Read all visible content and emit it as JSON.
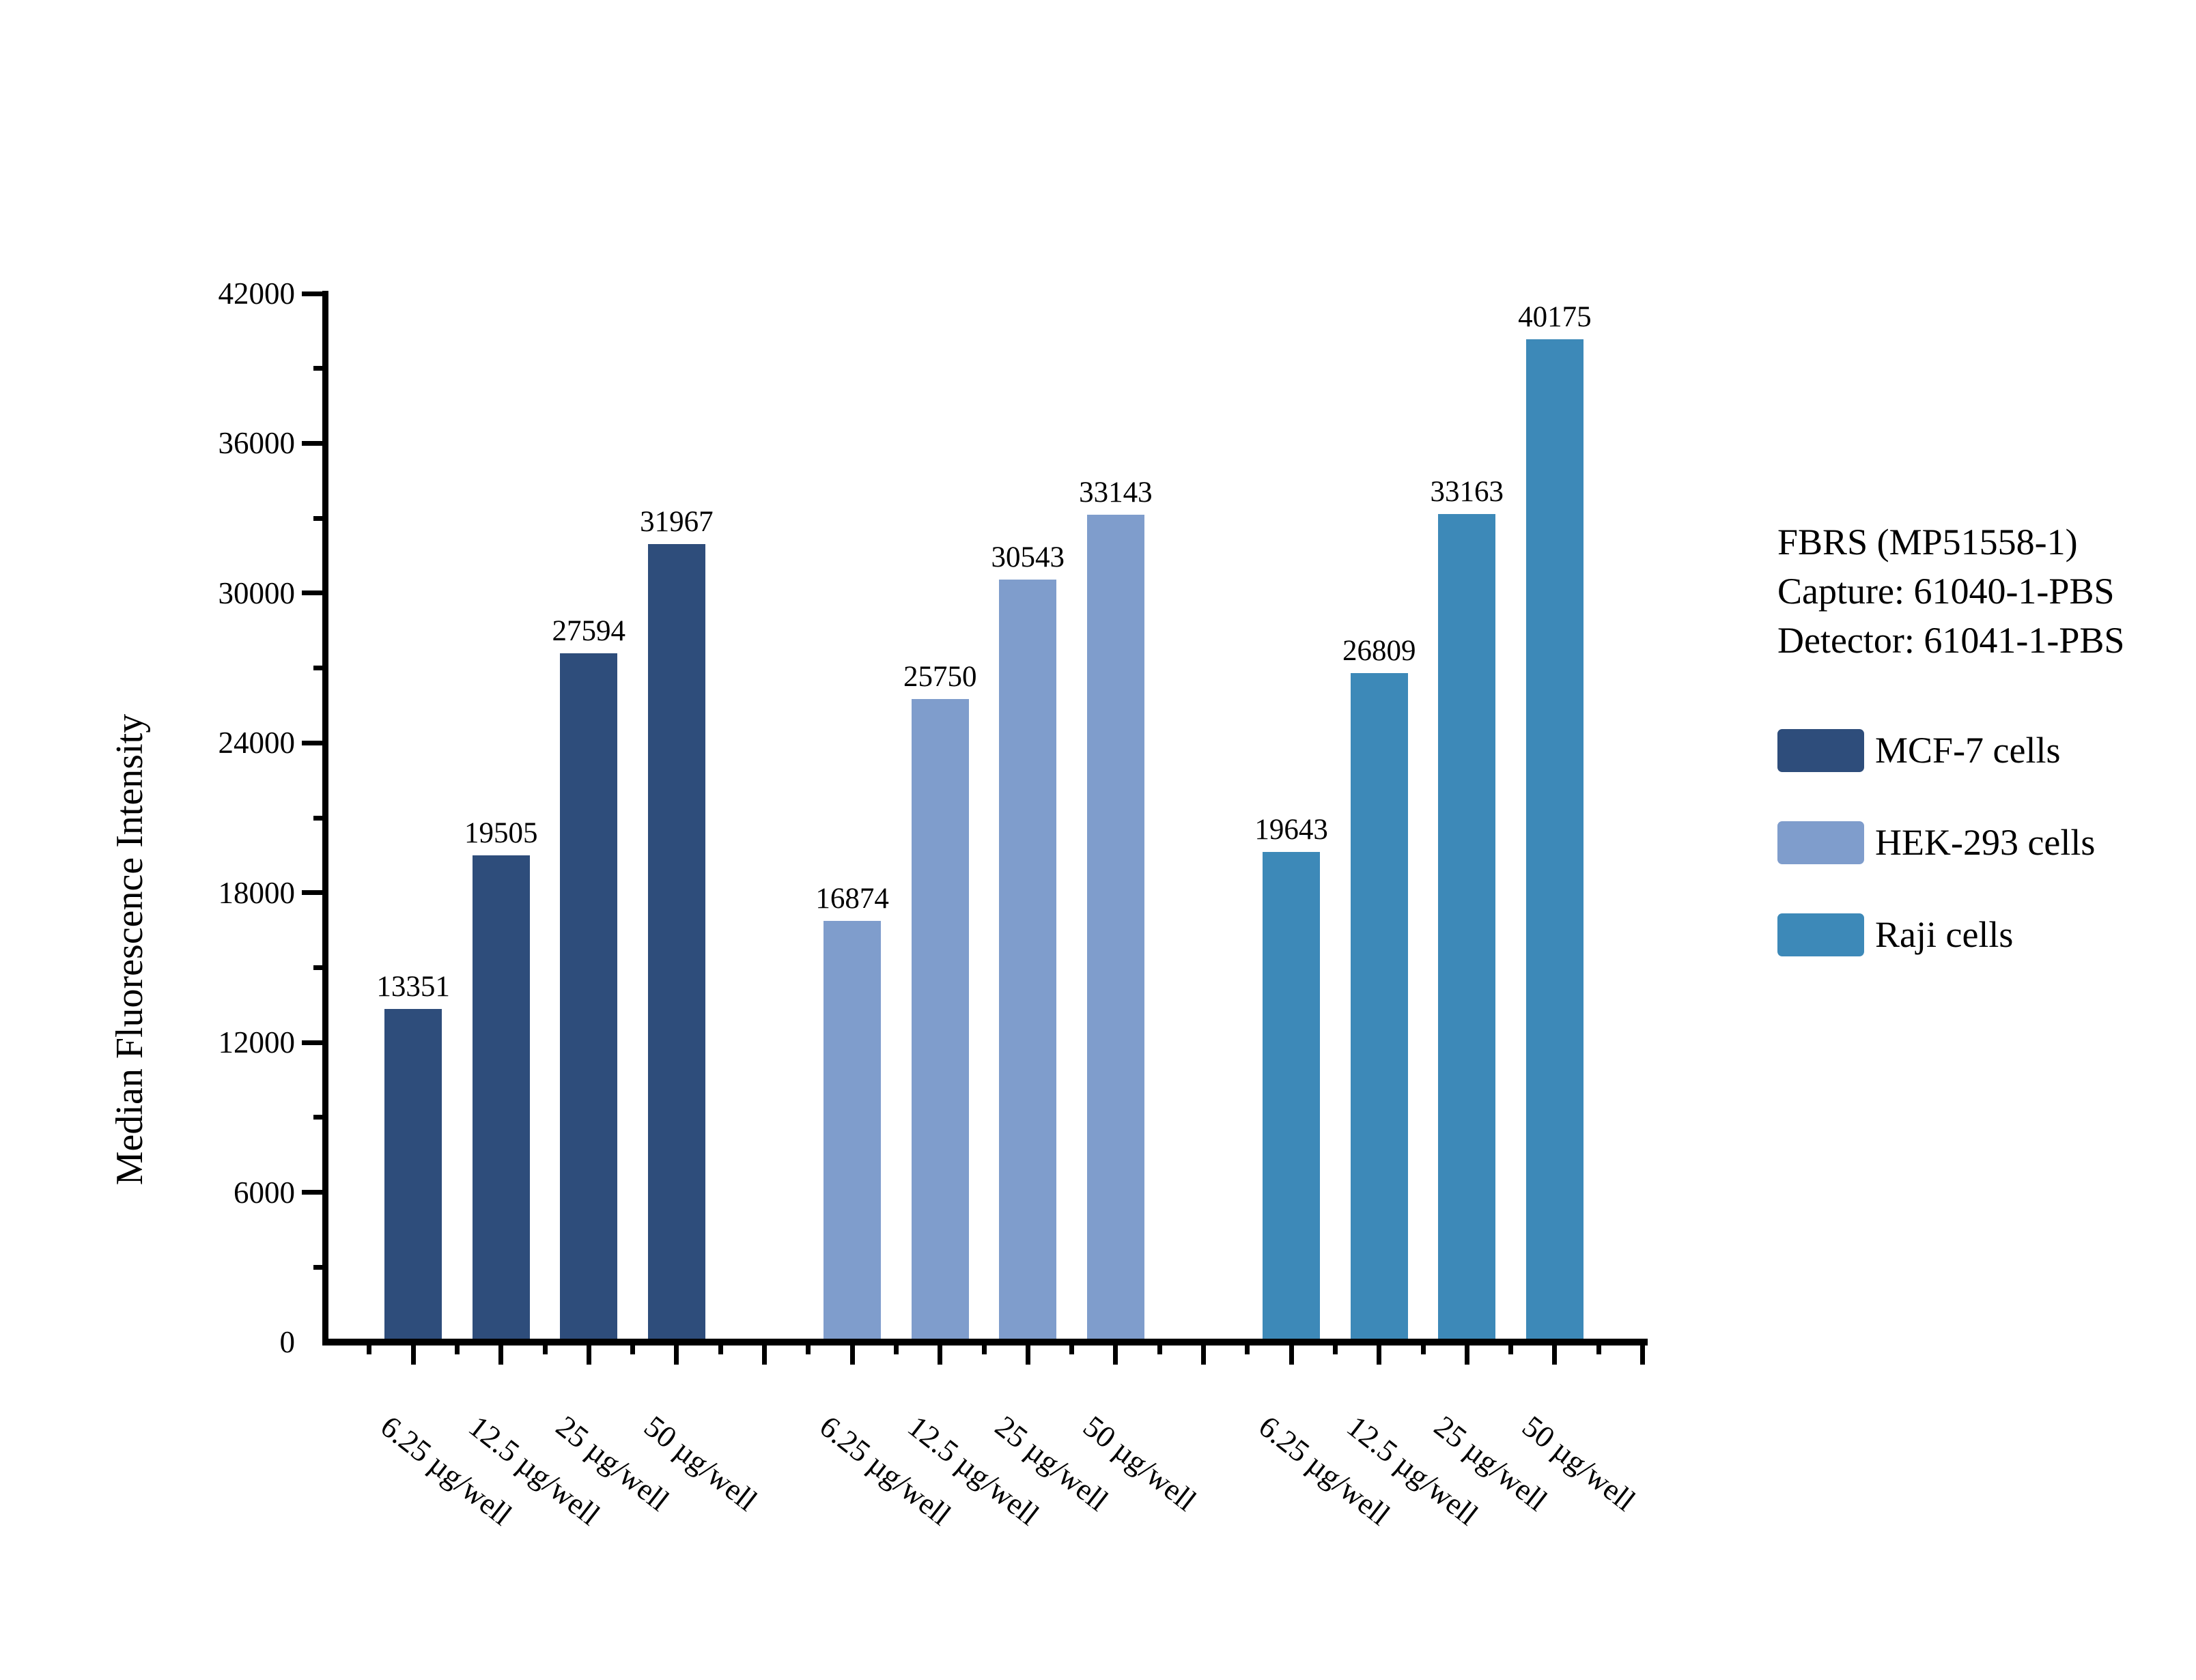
{
  "chart_data": {
    "type": "bar",
    "title": "",
    "ylabel": "Median Fluorescence Intensity",
    "xlabel": "",
    "ylim": [
      0,
      42000
    ],
    "ytick_major_step": 6000,
    "ytick_minor_step": 3000,
    "yticks": [
      0,
      6000,
      12000,
      18000,
      24000,
      30000,
      36000,
      42000
    ],
    "grid": false,
    "legend_position": "right",
    "categories": [
      "6.25 µg/well",
      "12.5 µg/well",
      "25 µg/well",
      "50 µg/well"
    ],
    "series": [
      {
        "name": "MCF-7 cells",
        "color": "#2e4d7b",
        "values": [
          13351,
          19505,
          27594,
          31967
        ]
      },
      {
        "name": "HEK-293 cells",
        "color": "#7f9dcc",
        "values": [
          16874,
          25750,
          30543,
          33143
        ]
      },
      {
        "name": "Raji cells",
        "color": "#3d89b8",
        "values": [
          19643,
          26809,
          33163,
          40175
        ]
      }
    ]
  },
  "annotation": {
    "lines": [
      "FBRS (MP51558-1)",
      "Capture: 61040-1-PBS",
      "Detector: 61041-1-PBS"
    ]
  },
  "colors": {
    "axis": "#000000",
    "text": "#000000",
    "background": "#ffffff"
  }
}
